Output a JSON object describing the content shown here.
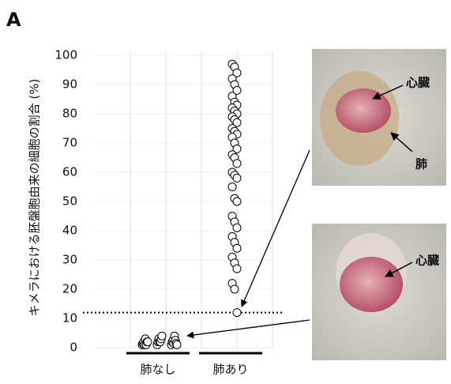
{
  "panel_label": "A",
  "chart_data": {
    "type": "strip",
    "y_label": "キメラにおける胚盤胞由来の細胞の割合 (%)",
    "categories": [
      "肺なし",
      "肺あり"
    ],
    "values": [
      [
        1,
        1,
        1,
        1.5,
        2,
        2,
        2,
        2.5,
        3,
        1,
        1.5,
        2,
        3,
        4,
        2,
        1,
        2.5,
        3,
        2,
        1.5,
        4,
        2,
        1
      ],
      [
        97,
        96,
        94,
        92,
        90,
        88,
        86,
        84,
        83,
        82,
        81,
        80,
        79,
        78,
        77,
        75,
        74,
        73,
        72,
        70,
        68,
        66,
        65,
        63,
        60,
        59,
        58,
        55,
        51,
        50,
        45,
        43,
        41,
        38,
        36,
        34,
        31,
        29,
        27,
        22,
        20,
        12
      ]
    ],
    "threshold": 12,
    "ylim": [
      0,
      100
    ],
    "yticks": [
      0,
      10,
      20,
      30,
      40,
      50,
      60,
      70,
      80,
      90,
      100
    ],
    "grid": true
  },
  "images": [
    {
      "labels": [
        "心臓",
        "肺"
      ]
    },
    {
      "labels": [
        "心臓"
      ]
    }
  ]
}
